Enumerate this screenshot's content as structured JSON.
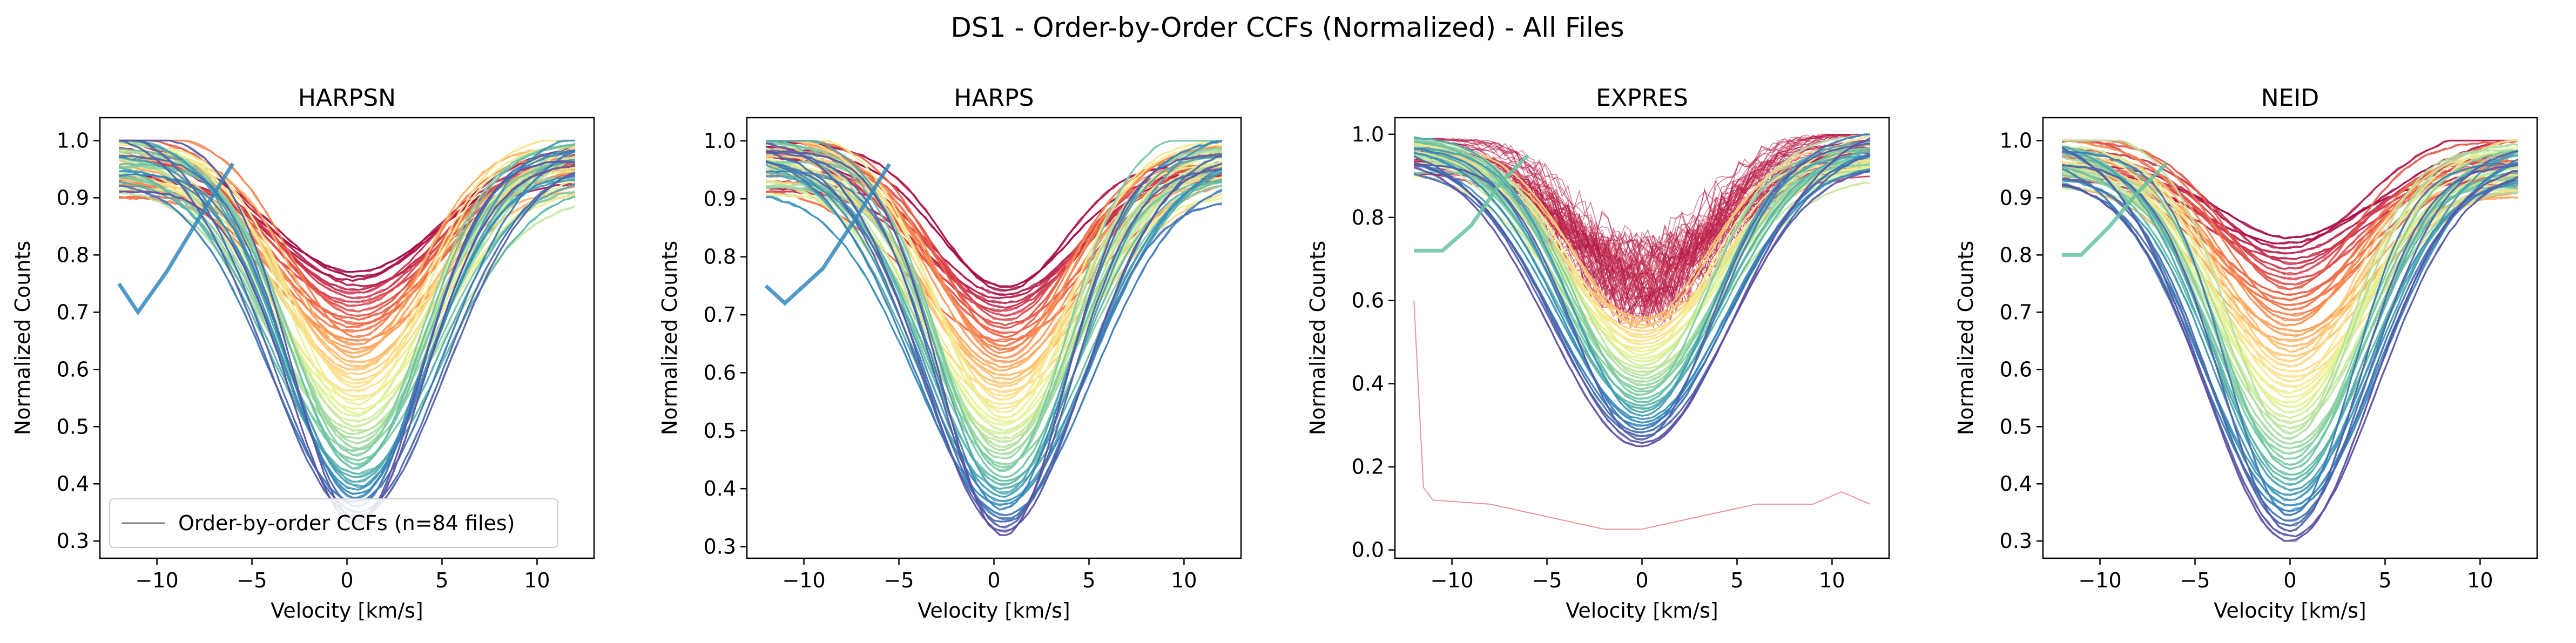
{
  "figure": {
    "title": "DS1 - Order-by-Order CCFs (Normalized) - All Files"
  },
  "colors": {
    "spectral": [
      "#9e0142",
      "#d53e4f",
      "#f46d43",
      "#fdae61",
      "#fee08b",
      "#e6f598",
      "#abdda4",
      "#66c2a5",
      "#3288bd",
      "#5e4fa2"
    ],
    "legend_line": "#808080"
  },
  "chart_data": [
    {
      "type": "line",
      "title": "HARPSN",
      "xlabel": "Velocity [km/s]",
      "ylabel": "Normalized Counts",
      "xlim": [
        -13,
        13
      ],
      "ylim": [
        0.27,
        1.04
      ],
      "xticks": [
        -10,
        -5,
        0,
        5,
        10
      ],
      "yticks": [
        0.3,
        0.4,
        0.5,
        0.6,
        0.7,
        0.8,
        0.9,
        1.0
      ],
      "x_range": [
        -12,
        12
      ],
      "center": 0.5,
      "min_depth": 0.33,
      "max_depth": 0.77,
      "grid": false,
      "legend": {
        "label": "Order-by-order CCFs (n=84 files)",
        "position": "lower-left"
      }
    },
    {
      "type": "line",
      "title": "HARPS",
      "xlabel": "Velocity [km/s]",
      "ylabel": "Normalized Counts",
      "xlim": [
        -13,
        13
      ],
      "ylim": [
        0.28,
        1.04
      ],
      "xticks": [
        -10,
        -5,
        0,
        5,
        10
      ],
      "yticks": [
        0.3,
        0.4,
        0.5,
        0.6,
        0.7,
        0.8,
        0.9,
        1.0
      ],
      "x_range": [
        -12,
        12
      ],
      "center": 0.5,
      "min_depth": 0.32,
      "max_depth": 0.75,
      "grid": false
    },
    {
      "type": "line",
      "title": "EXPRES",
      "xlabel": "Velocity [km/s]",
      "ylabel": "Normalized Counts",
      "xlim": [
        -13,
        13
      ],
      "ylim": [
        -0.02,
        1.04
      ],
      "xticks": [
        -10,
        -5,
        0,
        5,
        10
      ],
      "yticks": [
        0.0,
        0.2,
        0.4,
        0.6,
        0.8,
        1.0
      ],
      "x_range": [
        -12,
        12
      ],
      "center": 0.0,
      "min_depth": 0.25,
      "max_depth": 0.73,
      "grid": false
    },
    {
      "type": "line",
      "title": "NEID",
      "xlabel": "Velocity [km/s]",
      "ylabel": "Normalized Counts",
      "xlim": [
        -13,
        13
      ],
      "ylim": [
        0.27,
        1.04
      ],
      "xticks": [
        -10,
        -5,
        0,
        5,
        10
      ],
      "yticks": [
        0.3,
        0.4,
        0.5,
        0.6,
        0.7,
        0.8,
        0.9,
        1.0
      ],
      "x_range": [
        -12,
        12
      ],
      "center": 0.0,
      "min_depth": 0.3,
      "max_depth": 0.83,
      "grid": false
    }
  ]
}
